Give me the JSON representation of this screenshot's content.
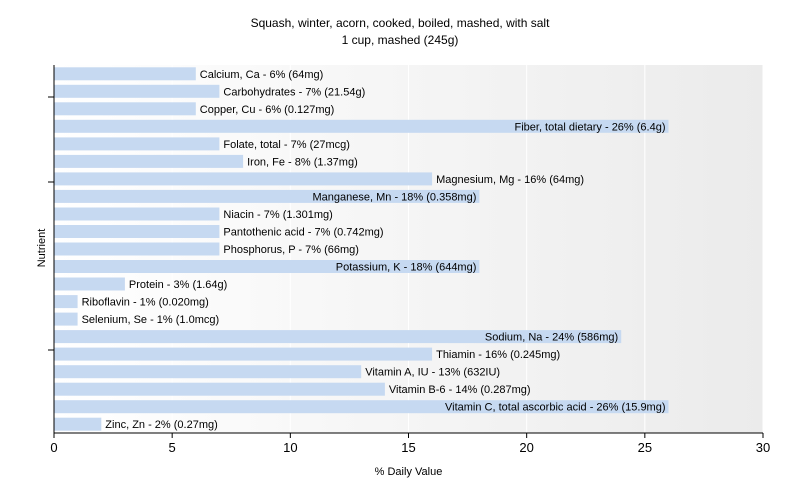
{
  "chart_data": {
    "type": "bar",
    "orientation": "horizontal",
    "title": "Squash, winter, acorn, cooked, boiled, mashed, with salt",
    "subtitle": "1 cup, mashed (245g)",
    "xlabel": "% Daily Value",
    "ylabel": "Nutrient",
    "xlim": [
      0,
      30
    ],
    "xticks": [
      0,
      5,
      10,
      15,
      20,
      25,
      30
    ],
    "grid": "vertical",
    "bar_color": "#c6d9f1",
    "background_gradient": [
      "#ffffff",
      "#ebebeb"
    ],
    "categories": [
      "Calcium, Ca",
      "Carbohydrates",
      "Copper, Cu",
      "Fiber, total dietary",
      "Folate, total",
      "Iron, Fe",
      "Magnesium, Mg",
      "Manganese, Mn",
      "Niacin",
      "Pantothenic acid",
      "Phosphorus, P",
      "Potassium, K",
      "Protein",
      "Riboflavin",
      "Selenium, Se",
      "Sodium, Na",
      "Thiamin",
      "Vitamin A, IU",
      "Vitamin B-6",
      "Vitamin C, total ascorbic acid",
      "Zinc, Zn"
    ],
    "values": [
      6,
      7,
      6,
      26,
      7,
      8,
      16,
      18,
      7,
      7,
      7,
      18,
      3,
      1,
      1,
      24,
      16,
      13,
      14,
      26,
      2
    ],
    "labels": [
      "Calcium, Ca - 6% (64mg)",
      "Carbohydrates - 7% (21.54g)",
      "Copper, Cu - 6% (0.127mg)",
      "Fiber, total dietary - 26% (6.4g)",
      "Folate, total - 7% (27mcg)",
      "Iron, Fe - 8% (1.37mg)",
      "Magnesium, Mg - 16% (64mg)",
      "Manganese, Mn - 18% (0.358mg)",
      "Niacin - 7% (1.301mg)",
      "Pantothenic acid - 7% (0.742mg)",
      "Phosphorus, P - 7% (66mg)",
      "Potassium, K - 18% (644mg)",
      "Protein - 3% (1.64g)",
      "Riboflavin - 1% (0.020mg)",
      "Selenium, Se - 1% (1.0mcg)",
      "Sodium, Na - 24% (586mg)",
      "Thiamin - 16% (0.245mg)",
      "Vitamin A, IU - 13% (632IU)",
      "Vitamin B-6 - 14% (0.287mg)",
      "Vitamin C, total ascorbic acid - 26% (15.9mg)",
      "Zinc, Zn - 2% (0.27mg)"
    ]
  }
}
